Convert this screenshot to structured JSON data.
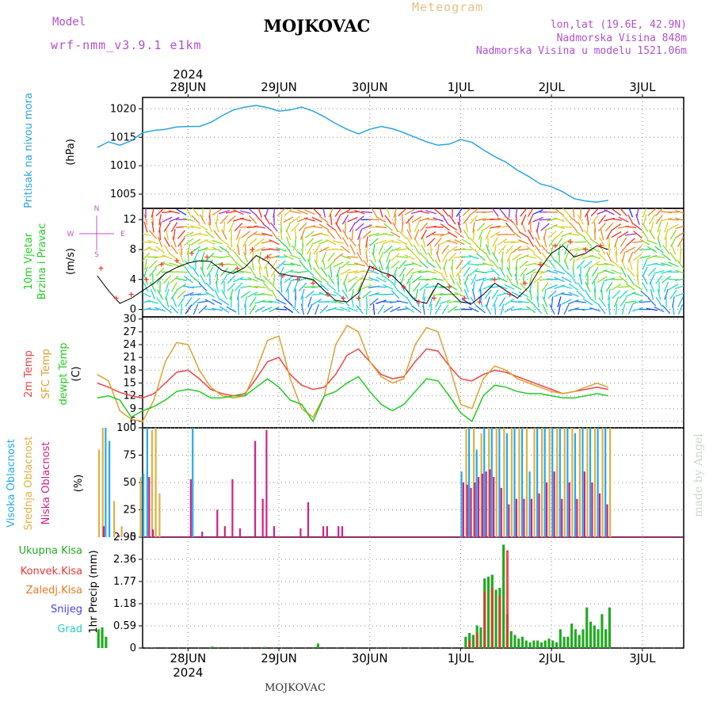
{
  "header": {
    "title": "MOJKOVAC",
    "meteogram": "Meteogram",
    "model_label": "Model",
    "model_name": "wrf-nmm_v3.9.1 e1km",
    "lonlat": "lon,lat (19.6E, 42.9N)",
    "elevation": "Nadmorska Visina 848m",
    "elevation_model": "Nadmorska Visina u modelu 1521.06m",
    "footer": "MOJKOVAC",
    "watermark": "made by Angel"
  },
  "time_axis": {
    "year": "2024",
    "days": [
      "28JUN",
      "29JUN",
      "30JUN",
      "1JUL",
      "2JUL",
      "3JUL"
    ]
  },
  "colors": {
    "pressure": "#29a3e3",
    "wind_speed": "#000000",
    "gust": "#ff3030",
    "t2m": "#ee4444",
    "sfc": "#e0a030",
    "dewpt": "#22cc22",
    "cloud_high": "#22aaee",
    "cloud_mid": "#e0b040",
    "cloud_low": "#cc2288",
    "precip_total": "#22aa22",
    "precip_conv": "#ee3333",
    "precip_frozen": "#ee7722",
    "snow": "#4444ee",
    "hail": "#22ccbb"
  },
  "labels": {
    "pressure": [
      "Pritisak na nivou mora",
      "(hPa)"
    ],
    "wind": [
      "10m Vjetar",
      "Brzina i Pravac",
      "(m/s)"
    ],
    "compass": [
      "N",
      "E",
      "S",
      "W"
    ],
    "temp": [
      "2m Temp",
      "SFC Temp",
      "dewpt Temp",
      "(C)"
    ],
    "cloud": [
      "Visoka Oblacnost",
      "Srednja Oblacnost",
      "Niska Oblacnost",
      "(%)"
    ],
    "precip": [
      "Ukupna Kisa",
      "Konvek.Kisa",
      "Zaledj.Kisa",
      "Snijeg",
      "Grad",
      "1hr Precip (mm)"
    ]
  },
  "chart_data": [
    {
      "type": "line",
      "name": "pressure",
      "ylabel": "(hPa)",
      "ylim": [
        1002.5,
        1022
      ],
      "yticks": [
        1005,
        1010,
        1015,
        1020
      ],
      "x_hours": [
        0,
        3,
        6,
        9,
        12,
        15,
        18,
        21,
        24,
        27,
        30,
        33,
        36,
        39,
        42,
        45,
        48,
        51,
        54,
        57,
        60,
        63,
        66,
        69,
        72,
        75,
        78,
        81,
        84,
        87,
        90,
        93,
        96,
        99,
        102,
        105,
        108,
        111,
        114,
        117,
        120,
        123,
        126,
        129,
        132,
        135
      ],
      "values": [
        1013.2,
        1014.2,
        1013.6,
        1014.4,
        1015.8,
        1016.2,
        1016.4,
        1016.8,
        1016.9,
        1016.9,
        1017.6,
        1018.8,
        1019.8,
        1020.3,
        1020.6,
        1020.2,
        1019.6,
        1019.8,
        1020.3,
        1019.6,
        1018.6,
        1017.4,
        1016.4,
        1015.6,
        1016.4,
        1016.9,
        1016.5,
        1015.8,
        1015.0,
        1014.2,
        1013.6,
        1013.8,
        1014.6,
        1014.1,
        1012.8,
        1011.6,
        1010.6,
        1009.2,
        1008.1,
        1006.8,
        1006.3,
        1005.4,
        1004.2,
        1003.8,
        1003.6,
        1003.9
      ]
    },
    {
      "type": "line",
      "name": "wind",
      "ylabel": "(m/s)",
      "ylim": [
        -1,
        13.5
      ],
      "yticks": [
        0,
        4,
        8,
        12
      ],
      "series": [
        {
          "x_hours": [
            0,
            3,
            6,
            9,
            12,
            15,
            18,
            21,
            24,
            27,
            30,
            33,
            36,
            39,
            42,
            45,
            48,
            51,
            54,
            57,
            60,
            63,
            66,
            69,
            72,
            75,
            78,
            81,
            84,
            87,
            90,
            93,
            96,
            99,
            102,
            105,
            108,
            111,
            114,
            117,
            120,
            123,
            126,
            129,
            132,
            135
          ],
          "values": [
            4.5,
            2.5,
            0.8,
            1.5,
            2.5,
            3.5,
            4.8,
            5.6,
            6.2,
            6.5,
            6.4,
            5.2,
            4.8,
            5.6,
            7.2,
            6.4,
            4.8,
            4.5,
            4.3,
            4.0,
            2.5,
            1.2,
            1.0,
            2.2,
            5.8,
            5.0,
            4.5,
            3.0,
            1.2,
            0.8,
            3.5,
            2.5,
            1.0,
            0.8,
            2.0,
            3.5,
            2.5,
            1.5,
            3.0,
            5.5,
            7.5,
            8.5,
            7.0,
            7.5,
            8.5,
            8.0
          ]
        },
        {
          "x_hours": [
            1,
            5,
            9,
            13,
            17,
            21,
            25,
            29,
            33,
            37,
            41,
            45,
            49,
            53,
            57,
            61,
            65,
            69,
            73,
            77,
            81,
            85,
            89,
            93,
            97,
            101,
            105,
            109,
            113,
            117,
            121,
            125,
            129,
            133
          ],
          "values": [
            5.5,
            1.5,
            2.0,
            4.0,
            6.0,
            6.5,
            7.5,
            7.0,
            6.0,
            5.5,
            8.0,
            7.0,
            4.5,
            4.0,
            3.5,
            2.0,
            1.5,
            1.5,
            5.5,
            4.5,
            3.0,
            1.0,
            1.5,
            3.0,
            1.5,
            1.0,
            4.0,
            2.0,
            3.5,
            6.0,
            8.5,
            9.0,
            8.0,
            8.5
          ]
        }
      ]
    },
    {
      "type": "line",
      "name": "temperature",
      "ylabel": "(C)",
      "ylim": [
        4.5,
        30.5
      ],
      "yticks": [
        6,
        9,
        12,
        15,
        18,
        21,
        24,
        27,
        30
      ],
      "x_hours": [
        0,
        3,
        6,
        9,
        12,
        15,
        18,
        21,
        24,
        27,
        30,
        33,
        36,
        39,
        42,
        45,
        48,
        51,
        54,
        57,
        60,
        63,
        66,
        69,
        72,
        75,
        78,
        81,
        84,
        87,
        90,
        93,
        96,
        99,
        102,
        105,
        108,
        111,
        114,
        117,
        120,
        123,
        126,
        129,
        132,
        135
      ],
      "series": [
        {
          "name": "2m Temp",
          "values": [
            15.0,
            14.0,
            12.8,
            12.0,
            11.5,
            12.5,
            15.0,
            17.5,
            18.0,
            16.0,
            13.5,
            12.5,
            12.0,
            12.5,
            16.0,
            20.0,
            21.0,
            17.0,
            14.5,
            13.5,
            14.0,
            17.0,
            21.5,
            23.0,
            20.0,
            17.0,
            16.0,
            16.5,
            20.0,
            23.0,
            22.5,
            19.0,
            16.0,
            15.5,
            17.0,
            18.0,
            17.5,
            16.5,
            15.5,
            14.5,
            13.5,
            12.5,
            13.0,
            13.5,
            14.0,
            13.5
          ]
        },
        {
          "name": "SFC Temp",
          "values": [
            17.0,
            15.5,
            8.5,
            6.5,
            6.0,
            11.0,
            20.0,
            24.5,
            24.0,
            18.0,
            14.0,
            12.0,
            11.5,
            12.0,
            18.0,
            25.0,
            26.0,
            16.0,
            9.0,
            7.0,
            12.0,
            24.0,
            28.5,
            27.0,
            20.0,
            16.5,
            15.0,
            16.0,
            24.0,
            28.0,
            27.0,
            19.0,
            10.0,
            9.0,
            16.0,
            19.0,
            18.0,
            16.0,
            15.0,
            14.0,
            13.0,
            12.5,
            13.0,
            14.0,
            15.0,
            14.0
          ]
        },
        {
          "name": "dewpt Temp",
          "values": [
            11.5,
            12.0,
            11.0,
            7.0,
            8.5,
            9.5,
            11.0,
            13.0,
            13.5,
            13.0,
            11.5,
            11.5,
            12.0,
            12.0,
            14.0,
            16.0,
            14.0,
            11.0,
            10.0,
            6.0,
            12.0,
            13.0,
            15.0,
            16.5,
            13.0,
            10.0,
            8.5,
            10.0,
            13.0,
            16.0,
            15.5,
            12.0,
            8.0,
            6.0,
            12.0,
            14.5,
            14.0,
            13.0,
            12.5,
            12.5,
            12.0,
            11.5,
            11.5,
            12.0,
            12.5,
            12.0
          ]
        }
      ]
    },
    {
      "type": "bar",
      "name": "cloud",
      "ylabel": "(%)",
      "ylim": [
        0,
        100
      ],
      "yticks": [
        0,
        25,
        50,
        75,
        100
      ],
      "series": [
        {
          "name": "Visoka Oblacnost",
          "x_hours": [
            2,
            3,
            12,
            13,
            25,
            96,
            98,
            100,
            102,
            104,
            106,
            108,
            110,
            112,
            114,
            116,
            118,
            120,
            122,
            124,
            126,
            128,
            130,
            132,
            134
          ],
          "values": [
            100,
            88,
            58,
            100,
            100,
            60,
            100,
            80,
            100,
            100,
            100,
            95,
            100,
            100,
            60,
            100,
            100,
            100,
            100,
            100,
            95,
            100,
            100,
            100,
            100
          ]
        },
        {
          "name": "Srednja Oblacnost",
          "x_hours": [
            0,
            1,
            4,
            6,
            11,
            14,
            15,
            16,
            97,
            99,
            101,
            103,
            105,
            107,
            109,
            111,
            113,
            115,
            117,
            119,
            121,
            123,
            125,
            127,
            129,
            131,
            133,
            135
          ],
          "values": [
            80,
            100,
            33,
            10,
            55,
            98,
            100,
            40,
            100,
            100,
            95,
            100,
            100,
            100,
            100,
            100,
            100,
            100,
            100,
            100,
            100,
            100,
            100,
            100,
            100,
            100,
            100,
            100
          ]
        },
        {
          "name": "Niska Oblacnost",
          "x_hours": [
            1,
            5,
            13,
            14,
            24,
            27,
            31,
            33,
            35,
            37,
            41,
            43,
            44,
            46,
            53,
            55,
            59,
            60,
            63,
            64,
            96,
            97,
            98,
            99,
            100,
            101,
            102,
            103,
            104,
            106,
            108,
            110,
            112,
            114,
            116,
            118,
            120,
            122,
            124,
            126,
            128,
            130,
            132,
            134
          ],
          "values": [
            10,
            2,
            55,
            7,
            53,
            5,
            25,
            10,
            53,
            8,
            88,
            35,
            98,
            10,
            8,
            32,
            10,
            10,
            10,
            10,
            50,
            48,
            45,
            50,
            55,
            58,
            60,
            62,
            55,
            45,
            30,
            35,
            35,
            35,
            40,
            50,
            60,
            35,
            50,
            35,
            60,
            50,
            40,
            30
          ]
        }
      ]
    },
    {
      "type": "bar",
      "name": "precip",
      "ylabel": "1hr Precip (mm)",
      "ylim": [
        0,
        2.95
      ],
      "yticks": [
        0,
        0.59,
        1.18,
        1.77,
        2.36,
        2.95
      ],
      "series": [
        {
          "name": "Ukupna Kisa",
          "x_hours": [
            0,
            1,
            2,
            14,
            30,
            44,
            58,
            97,
            98,
            99,
            100,
            101,
            102,
            103,
            104,
            105,
            106,
            107,
            108,
            109,
            110,
            111,
            112,
            113,
            114,
            115,
            116,
            117,
            118,
            119,
            120,
            121,
            122,
            123,
            124,
            125,
            126,
            127,
            128,
            129,
            130,
            131,
            132,
            133,
            134,
            135
          ],
          "values": [
            0.5,
            0.55,
            0.3,
            0.02,
            0.04,
            0.03,
            0.12,
            0.3,
            0.4,
            0.35,
            0.6,
            0.55,
            1.85,
            1.9,
            1.95,
            1.55,
            1.6,
            2.75,
            0.9,
            0.45,
            0.35,
            0.25,
            0.3,
            0.2,
            0.15,
            0.2,
            0.2,
            0.15,
            0.2,
            0.25,
            0.2,
            0.15,
            0.5,
            0.3,
            0.3,
            0.65,
            0.5,
            0.35,
            0.5,
            1.08,
            0.7,
            0.6,
            0.5,
            0.9,
            0.5,
            1.08
          ]
        },
        {
          "name": "Konvek.Kisa",
          "x_hours": [
            98,
            100,
            102,
            104,
            106,
            108
          ],
          "values": [
            0.2,
            0.4,
            1.5,
            1.6,
            1.4,
            2.6
          ]
        }
      ]
    }
  ]
}
